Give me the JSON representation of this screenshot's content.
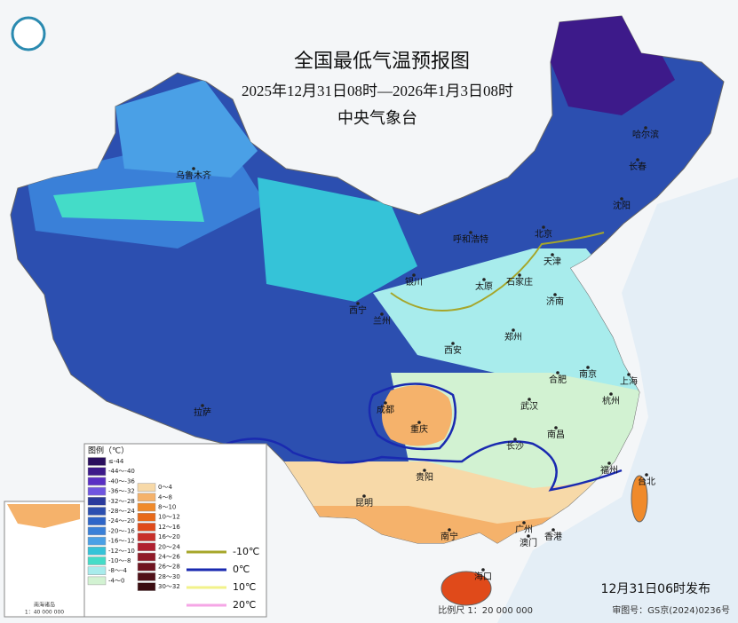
{
  "header": {
    "title": "全国最低气温预报图",
    "period": "2025年12月31日08时—2026年1月3日08时",
    "issuer": "中央气象台"
  },
  "cities": [
    "乌鲁木齐",
    "哈尔滨",
    "长春",
    "沈阳",
    "呼和浩特",
    "北京",
    "天津",
    "石家庄",
    "太原",
    "银川",
    "西宁",
    "兰州",
    "济南",
    "郑州",
    "西安",
    "合肥",
    "南京",
    "上海",
    "杭州",
    "武汉",
    "成都",
    "重庆",
    "拉萨",
    "长沙",
    "南昌",
    "贵阳",
    "福州",
    "台北",
    "昆明",
    "南宁",
    "广州",
    "澳门",
    "香港",
    "海口"
  ],
  "legend": {
    "title": "图例（℃）",
    "cold": [
      {
        "label": "≤-44",
        "color": "#2a0f5e"
      },
      {
        "label": "-44～-40",
        "color": "#3d1a8a"
      },
      {
        "label": "-40～-36",
        "color": "#5a2fc4"
      },
      {
        "label": "-36～-32",
        "color": "#6f55e0"
      },
      {
        "label": "-32～-28",
        "color": "#2a3a9c"
      },
      {
        "label": "-28～-24",
        "color": "#2c4fb0"
      },
      {
        "label": "-24～-20",
        "color": "#2f66c8"
      },
      {
        "label": "-20～-16",
        "color": "#3a80d8"
      },
      {
        "label": "-16～-12",
        "color": "#4aa0e6"
      },
      {
        "label": "-12～-10",
        "color": "#35c3d8"
      },
      {
        "label": "-10～-8",
        "color": "#44dcc8"
      },
      {
        "label": "-8～-4",
        "color": "#a8ecec"
      },
      {
        "label": "-4～0",
        "color": "#d2f2d2"
      }
    ],
    "warm": [
      {
        "label": "0～4",
        "color": "#f7d9a8"
      },
      {
        "label": "4～8",
        "color": "#f5b26b"
      },
      {
        "label": "8～10",
        "color": "#f08a2a"
      },
      {
        "label": "10～12",
        "color": "#e86a1a"
      },
      {
        "label": "12～16",
        "color": "#e04a1a"
      },
      {
        "label": "16～20",
        "color": "#c8302a"
      },
      {
        "label": "20～24",
        "color": "#b02030"
      },
      {
        "label": "24～26",
        "color": "#901a28"
      },
      {
        "label": "26～28",
        "color": "#701420"
      },
      {
        "label": "28～30",
        "color": "#501018"
      },
      {
        "label": "30～32",
        "color": "#3a0c10"
      }
    ],
    "isotherms": [
      {
        "label": "-10℃",
        "color": "#a6a62a"
      },
      {
        "label": "0℃",
        "color": "#1a2ab0"
      },
      {
        "label": "10℃",
        "color": "#f2f28a"
      },
      {
        "label": "20℃",
        "color": "#f5a6e6"
      }
    ]
  },
  "inset": {
    "label": "南海诸岛",
    "scale": "1：40 000 000"
  },
  "footer": {
    "release": "12月31日06时发布",
    "scale": "比例尺 1：20 000 000",
    "approval": "审图号：GS京(2024)0236号"
  }
}
